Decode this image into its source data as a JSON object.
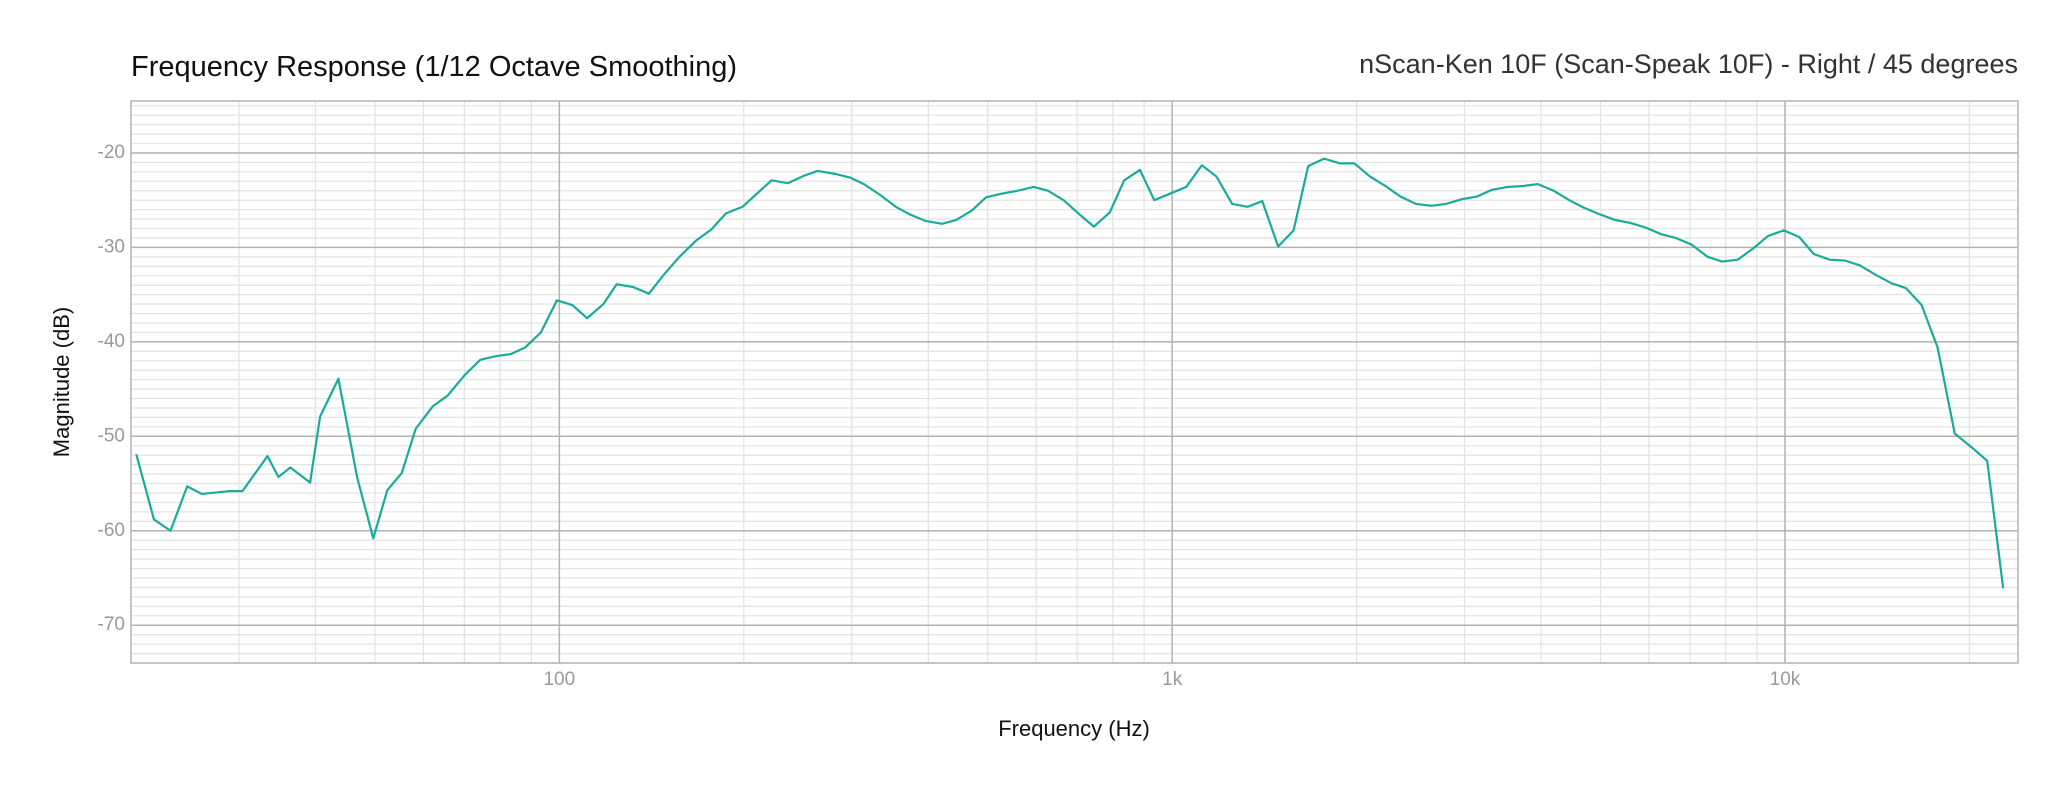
{
  "chart_data": {
    "type": "line",
    "title": "Frequency Response",
    "title_note": "(1/12 Octave Smoothing)",
    "subtitle": "nScan-Ken 10F (Scan-Speak 10F) - Right / 45 degrees",
    "x_label": "Frequency (Hz)",
    "y_label": "Magnitude (dB)",
    "x_log": true,
    "grid": true,
    "minor_grid": true,
    "color": "#1aab9b",
    "xlim": [
      20,
      24000
    ],
    "ylim": [
      -74,
      -14.5
    ],
    "xticks": [
      100,
      {
        "value": 1000,
        "label": "1k"
      },
      {
        "value": 10000,
        "label": "10k"
      }
    ],
    "yticks": [
      -70,
      -60,
      -50,
      -40,
      -30,
      -20
    ],
    "x": [
      20.4,
      21.8,
      23.2,
      24.7,
      26.1,
      29,
      30.4,
      33.4,
      34.8,
      36.4,
      39.2,
      40.7,
      43.6,
      46.8,
      49.7,
      52.4,
      55.3,
      58.3,
      62.2,
      65.7,
      70.1,
      74.3,
      78.9,
      83.3,
      87.9,
      93.3,
      99.1,
      105,
      111,
      118,
      124,
      132,
      140,
      148,
      157,
      167,
      177,
      187,
      199,
      211,
      222,
      236,
      251,
      264,
      281,
      298,
      314,
      333,
      354,
      373,
      396,
      421,
      444,
      471,
      497,
      528,
      560,
      594,
      627,
      665,
      703,
      745,
      791,
      835,
      886,
      935,
      993,
      1054,
      1118,
      1181,
      1253,
      1328,
      1403,
      1489,
      1578,
      1667,
      1770,
      1876,
      1982,
      2103,
      2229,
      2355,
      2500,
      2649,
      2798,
      2969,
      3148,
      3326,
      3529,
      3741,
      3951,
      4193,
      4446,
      4698,
      4985,
      5284,
      5583,
      5924,
      6280,
      6635,
      7040,
      7477,
      7895,
      8374,
      8877,
      9380,
      9953,
      10549,
      11142,
      11825,
      12531,
      13243,
      14060,
      14926,
      15744,
      16706,
      17743,
      18922,
      20280,
      21380,
      22699
    ],
    "values": [
      -51.9,
      -58.8,
      -60,
      -55.3,
      -56.1,
      -55.8,
      -55.8,
      -52.1,
      -54.3,
      -53.3,
      -54.9,
      -47.9,
      -43.9,
      -54.4,
      -60.8,
      -55.7,
      -53.9,
      -49.2,
      -46.8,
      -45.7,
      -43.5,
      -41.9,
      -41.5,
      -41.3,
      -40.6,
      -39,
      -35.6,
      -36.1,
      -37.5,
      -36,
      -33.9,
      -34.2,
      -34.9,
      -32.9,
      -31,
      -29.3,
      -28.1,
      -26.4,
      -25.7,
      -24.2,
      -22.9,
      -23.2,
      -22.4,
      -21.9,
      -22.2,
      -22.6,
      -23.3,
      -24.4,
      -25.7,
      -26.5,
      -27.2,
      -27.5,
      -27.1,
      -26.1,
      -24.7,
      -24.3,
      -24,
      -23.6,
      -24,
      -25,
      -26.4,
      -27.8,
      -26.3,
      -22.9,
      -21.8,
      -25,
      -24.3,
      -23.6,
      -21.3,
      -22.5,
      -25.4,
      -25.7,
      -25.1,
      -29.9,
      -28.2,
      -21.4,
      -20.6,
      -21.1,
      -21.1,
      -22.5,
      -23.5,
      -24.6,
      -25.4,
      -25.6,
      -25.4,
      -24.9,
      -24.6,
      -23.9,
      -23.6,
      -23.5,
      -23.3,
      -24,
      -25,
      -25.8,
      -26.5,
      -27.1,
      -27.4,
      -27.9,
      -28.6,
      -29,
      -29.7,
      -31,
      -31.5,
      -31.3,
      -30.1,
      -28.8,
      -28.2,
      -28.9,
      -30.7,
      -31.3,
      -31.4,
      -31.9,
      -32.9,
      -33.8,
      -34.3,
      -36.1,
      -40.6,
      -49.7,
      -51.3,
      -52.6,
      -66.1
    ]
  }
}
